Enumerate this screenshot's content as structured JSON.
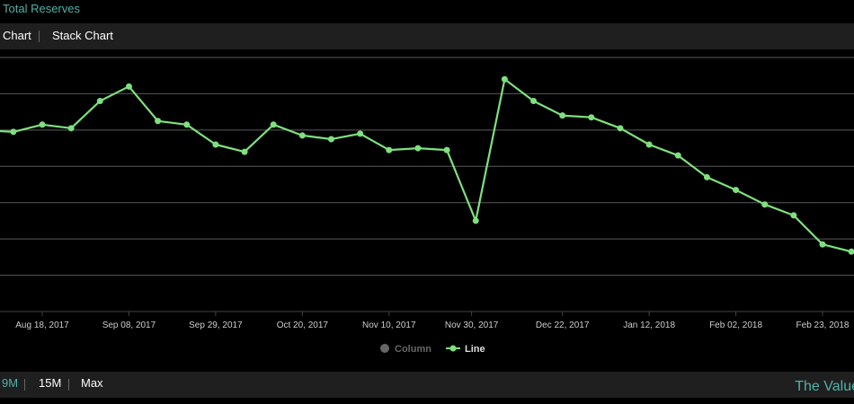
{
  "page": {
    "title": "Total Reserves",
    "brand": "The Value"
  },
  "tabs": [
    {
      "label": "Chart"
    },
    {
      "label": "Stack Chart"
    }
  ],
  "ranges": [
    {
      "label": "9M",
      "active": true
    },
    {
      "label": "15M",
      "active": false
    },
    {
      "label": "Max",
      "active": false
    }
  ],
  "colors": {
    "line": "#7ee07e",
    "accent": "#4fb3a9",
    "column_legend": "#666666",
    "grid": "#5a5a5a"
  },
  "chart_data": {
    "type": "line",
    "title": "",
    "xlabel": "",
    "ylabel": "",
    "x_ticks": [
      "Aug 18, 2017",
      "Sep 08, 2017",
      "Sep 29, 2017",
      "Oct 20, 2017",
      "Nov 10, 2017",
      "Nov 30, 2017",
      "Dec 22, 2017",
      "Jan 12, 2018",
      "Feb 02, 2018",
      "Feb 23, 2018"
    ],
    "y_ticks": [],
    "grid": true,
    "ylim": [
      0,
      7
    ],
    "legend": {
      "position": "bottom-center",
      "items": [
        {
          "label": "Column",
          "enabled": false
        },
        {
          "label": "Line",
          "enabled": true
        }
      ]
    },
    "series": [
      {
        "name": "Line",
        "points": [
          [
            "Aug 04, 2017",
            5.0
          ],
          [
            "Aug 11, 2017",
            4.95
          ],
          [
            "Aug 18, 2017",
            5.15
          ],
          [
            "Aug 25, 2017",
            5.05
          ],
          [
            "Sep 01, 2017",
            5.8
          ],
          [
            "Sep 08, 2017",
            6.2
          ],
          [
            "Sep 15, 2017",
            5.25
          ],
          [
            "Sep 22, 2017",
            5.15
          ],
          [
            "Sep 29, 2017",
            4.6
          ],
          [
            "Oct 06, 2017",
            4.4
          ],
          [
            "Oct 13, 2017",
            5.15
          ],
          [
            "Oct 20, 2017",
            4.85
          ],
          [
            "Oct 27, 2017",
            4.75
          ],
          [
            "Nov 03, 2017",
            4.9
          ],
          [
            "Nov 10, 2017",
            4.45
          ],
          [
            "Nov 17, 2017",
            4.5
          ],
          [
            "Nov 24, 2017",
            4.45
          ],
          [
            "Dec 01, 2017",
            2.5
          ],
          [
            "Dec 08, 2017",
            6.4
          ],
          [
            "Dec 15, 2017",
            5.8
          ],
          [
            "Dec 22, 2017",
            5.4
          ],
          [
            "Dec 29, 2017",
            5.35
          ],
          [
            "Jan 05, 2018",
            5.05
          ],
          [
            "Jan 12, 2018",
            4.6
          ],
          [
            "Jan 19, 2018",
            4.3
          ],
          [
            "Jan 26, 2018",
            3.7
          ],
          [
            "Feb 02, 2018",
            3.35
          ],
          [
            "Feb 09, 2018",
            2.95
          ],
          [
            "Feb 16, 2018",
            2.65
          ],
          [
            "Feb 23, 2018",
            1.85
          ],
          [
            "Mar 02, 2018",
            1.65
          ]
        ]
      }
    ]
  }
}
